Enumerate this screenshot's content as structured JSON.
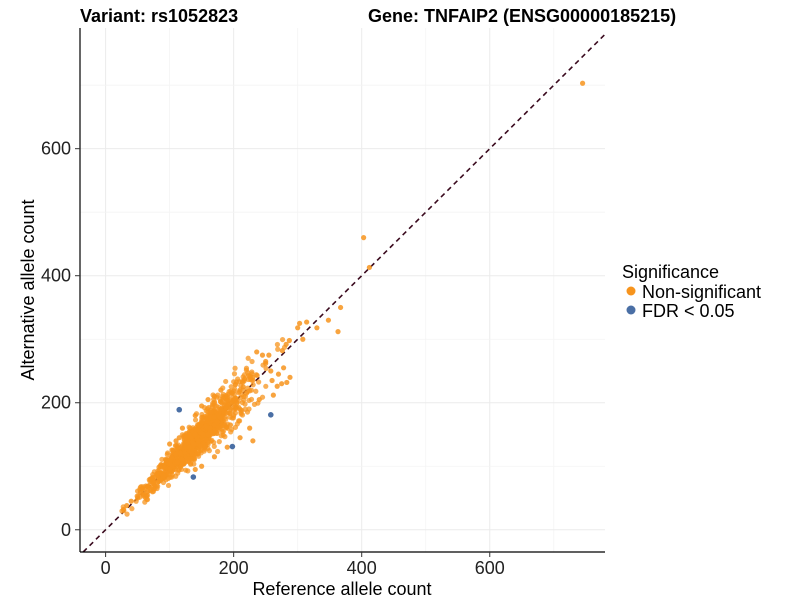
{
  "chart_data": {
    "type": "scatter",
    "title_left": "Variant: rs1052823",
    "title_right": "Gene: TNFAIP2 (ENSG00000185215)",
    "xlabel": "Reference allele count",
    "ylabel": "Alternative allele count",
    "xlim": [
      -40,
      780
    ],
    "ylim": [
      -35,
      790
    ],
    "xticks": [
      0,
      200,
      400,
      600
    ],
    "yticks": [
      0,
      200,
      400,
      600
    ],
    "reference_line": {
      "type": "identity",
      "slope": 1,
      "intercept": 0,
      "style": "dashed",
      "color": "#3a0a1e"
    },
    "legend": {
      "title": "Significance",
      "placement": "right",
      "entries": [
        {
          "label": "Non-significant",
          "color": "#f7941d"
        },
        {
          "label": "FDR < 0.05",
          "color": "#4a6fa5"
        }
      ]
    },
    "cluster_description": "Approximately 1000 non-significant variants clustered along the identity line between reference counts of about 25 and 290",
    "series": [
      {
        "name": "Non-significant",
        "color": "#f7941d",
        "points": [
          [
            745,
            703
          ],
          [
            403,
            460
          ],
          [
            412,
            413
          ],
          [
            367,
            350
          ],
          [
            348,
            330
          ],
          [
            330,
            318
          ],
          [
            308,
            300
          ],
          [
            303,
            325
          ],
          [
            314,
            327
          ],
          [
            300,
            318
          ],
          [
            287,
            298
          ],
          [
            282,
            292
          ],
          [
            276,
            282
          ],
          [
            363,
            312
          ],
          [
            288,
            240
          ],
          [
            283,
            232
          ],
          [
            275,
            230
          ],
          [
            268,
            226
          ],
          [
            258,
            250
          ],
          [
            250,
            262
          ],
          [
            245,
            275
          ],
          [
            236,
            280
          ],
          [
            250,
            265
          ],
          [
            255,
            275
          ],
          [
            230,
            240
          ],
          [
            220,
            215
          ],
          [
            215,
            225
          ],
          [
            205,
            200
          ],
          [
            200,
            180
          ],
          [
            195,
            165
          ],
          [
            190,
            210
          ],
          [
            180,
            190
          ],
          [
            170,
            165
          ],
          [
            165,
            185
          ],
          [
            160,
            150
          ],
          [
            150,
            170
          ],
          [
            145,
            140
          ],
          [
            140,
            150
          ],
          [
            130,
            130
          ],
          [
            125,
            145
          ],
          [
            120,
            110
          ],
          [
            110,
            120
          ],
          [
            100,
            95
          ],
          [
            95,
            110
          ],
          [
            90,
            85
          ],
          [
            80,
            88
          ],
          [
            75,
            72
          ],
          [
            65,
            68
          ],
          [
            60,
            55
          ],
          [
            50,
            50
          ],
          [
            40,
            45
          ],
          [
            33,
            38
          ],
          [
            28,
            32
          ],
          [
            225,
            160
          ],
          [
            230,
            140
          ],
          [
            210,
            145
          ],
          [
            190,
            130
          ],
          [
            170,
            115
          ],
          [
            150,
            100
          ],
          [
            140,
            95
          ],
          [
            240,
            205
          ],
          [
            260,
            235
          ],
          [
            262,
            212
          ],
          [
            270,
            245
          ],
          [
            278,
            255
          ],
          [
            180,
            220
          ],
          [
            170,
            210
          ],
          [
            160,
            205
          ],
          [
            150,
            195
          ],
          [
            140,
            180
          ],
          [
            120,
            160
          ],
          [
            100,
            135
          ],
          [
            115,
            145
          ],
          [
            135,
            120
          ],
          [
            155,
            130
          ],
          [
            185,
            165
          ],
          [
            200,
            205
          ],
          [
            210,
            220
          ],
          [
            195,
            190
          ],
          [
            175,
            170
          ],
          [
            130,
            150
          ],
          [
            110,
            140
          ],
          [
            105,
            125
          ],
          [
            85,
            100
          ],
          [
            70,
            80
          ]
        ]
      },
      {
        "name": "FDR < 0.05",
        "color": "#4a6fa5",
        "points": [
          [
            115,
            189
          ],
          [
            258,
            181
          ],
          [
            198,
            131
          ],
          [
            137,
            83
          ]
        ]
      }
    ]
  }
}
